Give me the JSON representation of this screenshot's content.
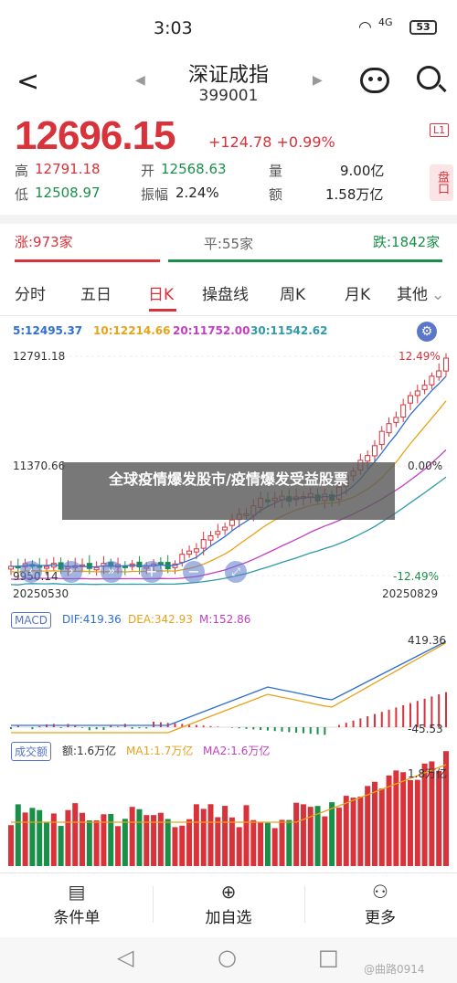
{
  "status_bar": {
    "time": "3:03",
    "network": "4G",
    "battery": "53"
  },
  "header": {
    "title": "深证成指",
    "code": "399001"
  },
  "quote": {
    "price": "12696.15",
    "change": "+124.78",
    "change_pct": "+0.99%",
    "badge": "L1",
    "high_label": "高",
    "high": "12791.18",
    "open_label": "开",
    "open": "12568.63",
    "volume_label": "量",
    "volume": "9.00亿",
    "low_label": "低",
    "low": "12508.97",
    "amplitude_label": "振幅",
    "amplitude": "2.24%",
    "amount_label": "额",
    "amount": "1.58万亿",
    "pan_label": "盘口"
  },
  "breadth": {
    "up": "涨:973家",
    "flat": "平:55家",
    "down": "跌:1842家",
    "up_count": 973,
    "flat_count": 55,
    "down_count": 1842
  },
  "tabs": [
    "分时",
    "五日",
    "日K",
    "操盘线",
    "周K",
    "月K",
    "其他"
  ],
  "active_tab": "日K",
  "ma_legend": {
    "ma5": "5:12495.37",
    "ma10": "10:12214.66",
    "ma20": "20:11752.00",
    "ma30": "30:11542.62"
  },
  "kline": {
    "y_top": "12791.18",
    "y_mid": "11370.66",
    "y_bottom": "9950.14",
    "pct_top": "12.49%",
    "pct_mid": "0.00%",
    "pct_bottom": "-12.49%",
    "date_start": "20250530",
    "date_end": "20250829"
  },
  "macd": {
    "label": "MACD",
    "dif": "DIF:419.36",
    "dea": "DEA:342.93",
    "m": "M:152.86",
    "top": "419.36",
    "bottom": "-45.53"
  },
  "volume": {
    "label": "成交额",
    "amount": "额:1.6万亿",
    "ma1": "MA1:1.7万亿",
    "ma2": "MA2:1.6万亿",
    "top": "1.8万亿"
  },
  "overlay": {
    "text": "全球疫情爆发股市/疫情爆发受益股票"
  },
  "toolbar": {
    "condition": "条件单",
    "add": "加自选",
    "more": "更多"
  },
  "watermark": "@曲路0914",
  "colors": {
    "up": "#d8323a",
    "down": "#1a8f4a",
    "ma5": "#2f6fd0",
    "ma10": "#e8a21a",
    "ma20": "#c23fc0",
    "ma30": "#2f9aa8"
  }
}
